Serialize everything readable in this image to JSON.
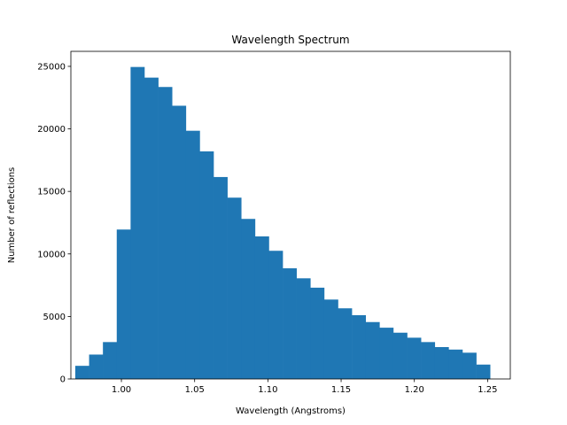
{
  "chart_data": {
    "type": "bar",
    "title": "Wavelength Spectrum",
    "xlabel": "Wavelength (Angstroms)",
    "ylabel": "Number of reflections",
    "xlim": [
      0.9655,
      1.2655
    ],
    "ylim": [
      0,
      26200
    ],
    "bar_color": "#1f77b4",
    "bin_start": 0.9685,
    "bin_width": 0.00944,
    "values": [
      1050,
      1950,
      2950,
      11950,
      24950,
      24100,
      23350,
      21850,
      19850,
      18200,
      16150,
      14500,
      12800,
      11400,
      10250,
      8850,
      8050,
      7300,
      6350,
      5650,
      5100,
      4550,
      4100,
      3700,
      3300,
      2950,
      2550,
      2350,
      2100,
      1150
    ],
    "x_ticks": [
      1.0,
      1.05,
      1.1,
      1.15,
      1.2,
      1.25
    ],
    "x_tick_labels": [
      "1.00",
      "1.05",
      "1.10",
      "1.15",
      "1.20",
      "1.25"
    ],
    "y_ticks": [
      0,
      5000,
      10000,
      15000,
      20000,
      25000
    ],
    "y_tick_labels": [
      "0",
      "5000",
      "10000",
      "15000",
      "20000",
      "25000"
    ]
  }
}
